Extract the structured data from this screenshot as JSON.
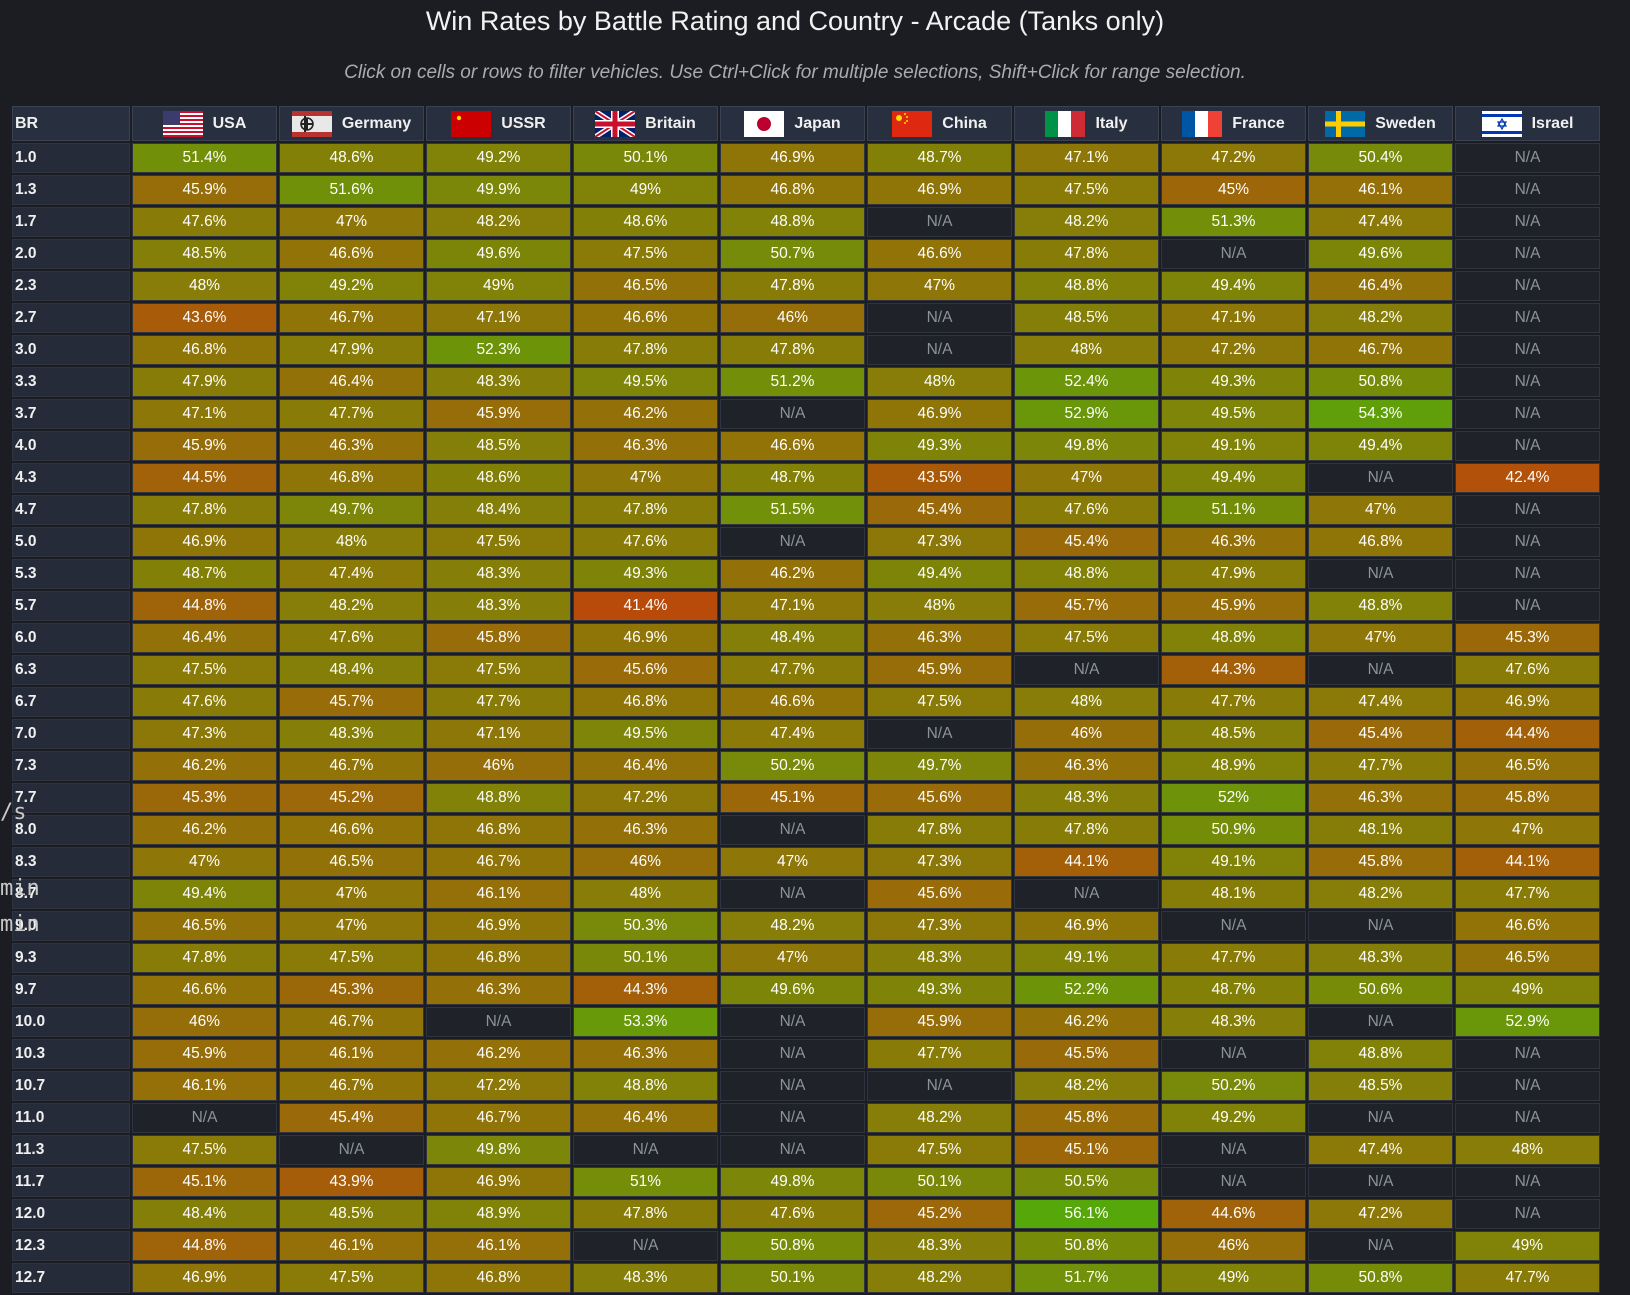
{
  "title": "Win Rates by Battle Rating and Country - Arcade (Tanks only)",
  "subtitle": "Click on cells or rows to filter vehicles. Use Ctrl+Click for multiple selections, Shift+Click for range selection.",
  "table": {
    "br_header": "BR",
    "countries": [
      {
        "name": "USA",
        "flag": "usa-flag-icon"
      },
      {
        "name": "Germany",
        "flag": "germany-flag-icon"
      },
      {
        "name": "USSR",
        "flag": "ussr-flag-icon"
      },
      {
        "name": "Britain",
        "flag": "britain-flag-icon"
      },
      {
        "name": "Japan",
        "flag": "japan-flag-icon"
      },
      {
        "name": "China",
        "flag": "china-flag-icon"
      },
      {
        "name": "Italy",
        "flag": "italy-flag-icon"
      },
      {
        "name": "France",
        "flag": "france-flag-icon"
      },
      {
        "name": "Sweden",
        "flag": "sweden-flag-icon"
      },
      {
        "name": "Israel",
        "flag": "israel-flag-icon"
      }
    ],
    "rows": [
      {
        "br": "1.0",
        "values": [
          "51.4%",
          "48.6%",
          "49.2%",
          "50.1%",
          "46.9%",
          "48.7%",
          "47.1%",
          "47.2%",
          "50.4%",
          "N/A"
        ]
      },
      {
        "br": "1.3",
        "values": [
          "45.9%",
          "51.6%",
          "49.9%",
          "49%",
          "46.8%",
          "46.9%",
          "47.5%",
          "45%",
          "46.1%",
          "N/A"
        ]
      },
      {
        "br": "1.7",
        "values": [
          "47.6%",
          "47%",
          "48.2%",
          "48.6%",
          "48.8%",
          "N/A",
          "48.2%",
          "51.3%",
          "47.4%",
          "N/A"
        ]
      },
      {
        "br": "2.0",
        "values": [
          "48.5%",
          "46.6%",
          "49.6%",
          "47.5%",
          "50.7%",
          "46.6%",
          "47.8%",
          "N/A",
          "49.6%",
          "N/A"
        ]
      },
      {
        "br": "2.3",
        "values": [
          "48%",
          "49.2%",
          "49%",
          "46.5%",
          "47.8%",
          "47%",
          "48.8%",
          "49.4%",
          "46.4%",
          "N/A"
        ]
      },
      {
        "br": "2.7",
        "values": [
          "43.6%",
          "46.7%",
          "47.1%",
          "46.6%",
          "46%",
          "N/A",
          "48.5%",
          "47.1%",
          "48.2%",
          "N/A"
        ]
      },
      {
        "br": "3.0",
        "values": [
          "46.8%",
          "47.9%",
          "52.3%",
          "47.8%",
          "47.8%",
          "N/A",
          "48%",
          "47.2%",
          "46.7%",
          "N/A"
        ]
      },
      {
        "br": "3.3",
        "values": [
          "47.9%",
          "46.4%",
          "48.3%",
          "49.5%",
          "51.2%",
          "48%",
          "52.4%",
          "49.3%",
          "50.8%",
          "N/A"
        ]
      },
      {
        "br": "3.7",
        "values": [
          "47.1%",
          "47.7%",
          "45.9%",
          "46.2%",
          "N/A",
          "46.9%",
          "52.9%",
          "49.5%",
          "54.3%",
          "N/A"
        ]
      },
      {
        "br": "4.0",
        "values": [
          "45.9%",
          "46.3%",
          "48.5%",
          "46.3%",
          "46.6%",
          "49.3%",
          "49.8%",
          "49.1%",
          "49.4%",
          "N/A"
        ]
      },
      {
        "br": "4.3",
        "values": [
          "44.5%",
          "46.8%",
          "48.6%",
          "47%",
          "48.7%",
          "43.5%",
          "47%",
          "49.4%",
          "N/A",
          "42.4%"
        ]
      },
      {
        "br": "4.7",
        "values": [
          "47.8%",
          "49.7%",
          "48.4%",
          "47.8%",
          "51.5%",
          "45.4%",
          "47.6%",
          "51.1%",
          "47%",
          "N/A"
        ]
      },
      {
        "br": "5.0",
        "values": [
          "46.9%",
          "48%",
          "47.5%",
          "47.6%",
          "N/A",
          "47.3%",
          "45.4%",
          "46.3%",
          "46.8%",
          "N/A"
        ]
      },
      {
        "br": "5.3",
        "values": [
          "48.7%",
          "47.4%",
          "48.3%",
          "49.3%",
          "46.2%",
          "49.4%",
          "48.8%",
          "47.9%",
          "N/A",
          "N/A"
        ]
      },
      {
        "br": "5.7",
        "values": [
          "44.8%",
          "48.2%",
          "48.3%",
          "41.4%",
          "47.1%",
          "48%",
          "45.7%",
          "45.9%",
          "48.8%",
          "N/A"
        ]
      },
      {
        "br": "6.0",
        "values": [
          "46.4%",
          "47.6%",
          "45.8%",
          "46.9%",
          "48.4%",
          "46.3%",
          "47.5%",
          "48.8%",
          "47%",
          "45.3%"
        ]
      },
      {
        "br": "6.3",
        "values": [
          "47.5%",
          "48.4%",
          "47.5%",
          "45.6%",
          "47.7%",
          "45.9%",
          "N/A",
          "44.3%",
          "N/A",
          "47.6%"
        ]
      },
      {
        "br": "6.7",
        "values": [
          "47.6%",
          "45.7%",
          "47.7%",
          "46.8%",
          "46.6%",
          "47.5%",
          "48%",
          "47.7%",
          "47.4%",
          "46.9%"
        ]
      },
      {
        "br": "7.0",
        "values": [
          "47.3%",
          "48.3%",
          "47.1%",
          "49.5%",
          "47.4%",
          "N/A",
          "46%",
          "48.5%",
          "45.4%",
          "44.4%"
        ]
      },
      {
        "br": "7.3",
        "values": [
          "46.2%",
          "46.7%",
          "46%",
          "46.4%",
          "50.2%",
          "49.7%",
          "46.3%",
          "48.9%",
          "47.7%",
          "46.5%"
        ]
      },
      {
        "br": "7.7",
        "values": [
          "45.3%",
          "45.2%",
          "48.8%",
          "47.2%",
          "45.1%",
          "45.6%",
          "48.3%",
          "52%",
          "46.3%",
          "45.8%"
        ]
      },
      {
        "br": "8.0",
        "values": [
          "46.2%",
          "46.6%",
          "46.8%",
          "46.3%",
          "N/A",
          "47.8%",
          "47.8%",
          "50.9%",
          "48.1%",
          "47%"
        ]
      },
      {
        "br": "8.3",
        "values": [
          "47%",
          "46.5%",
          "46.7%",
          "46%",
          "47%",
          "47.3%",
          "44.1%",
          "49.1%",
          "45.8%",
          "44.1%"
        ]
      },
      {
        "br": "8.7",
        "values": [
          "49.4%",
          "47%",
          "46.1%",
          "48%",
          "N/A",
          "45.6%",
          "N/A",
          "48.1%",
          "48.2%",
          "47.7%"
        ]
      },
      {
        "br": "9.0",
        "values": [
          "46.5%",
          "47%",
          "46.9%",
          "50.3%",
          "48.2%",
          "47.3%",
          "46.9%",
          "N/A",
          "N/A",
          "46.6%"
        ]
      },
      {
        "br": "9.3",
        "values": [
          "47.8%",
          "47.5%",
          "46.8%",
          "50.1%",
          "47%",
          "48.3%",
          "49.1%",
          "47.7%",
          "48.3%",
          "46.5%"
        ]
      },
      {
        "br": "9.7",
        "values": [
          "46.6%",
          "45.3%",
          "46.3%",
          "44.3%",
          "49.6%",
          "49.3%",
          "52.2%",
          "48.7%",
          "50.6%",
          "49%"
        ]
      },
      {
        "br": "10.0",
        "values": [
          "46%",
          "46.7%",
          "N/A",
          "53.3%",
          "N/A",
          "45.9%",
          "46.2%",
          "48.3%",
          "N/A",
          "52.9%"
        ]
      },
      {
        "br": "10.3",
        "values": [
          "45.9%",
          "46.1%",
          "46.2%",
          "46.3%",
          "N/A",
          "47.7%",
          "45.5%",
          "N/A",
          "48.8%",
          "N/A"
        ]
      },
      {
        "br": "10.7",
        "values": [
          "46.1%",
          "46.7%",
          "47.2%",
          "48.8%",
          "N/A",
          "N/A",
          "48.2%",
          "50.2%",
          "48.5%",
          "N/A"
        ]
      },
      {
        "br": "11.0",
        "values": [
          "N/A",
          "45.4%",
          "46.7%",
          "46.4%",
          "N/A",
          "48.2%",
          "45.8%",
          "49.2%",
          "N/A",
          "N/A"
        ]
      },
      {
        "br": "11.3",
        "values": [
          "47.5%",
          "N/A",
          "49.8%",
          "N/A",
          "N/A",
          "47.5%",
          "45.1%",
          "N/A",
          "47.4%",
          "48%"
        ]
      },
      {
        "br": "11.7",
        "values": [
          "45.1%",
          "43.9%",
          "46.9%",
          "51%",
          "49.8%",
          "50.1%",
          "50.5%",
          "N/A",
          "N/A",
          "N/A"
        ]
      },
      {
        "br": "12.0",
        "values": [
          "48.4%",
          "48.5%",
          "48.9%",
          "47.8%",
          "47.6%",
          "45.2%",
          "56.1%",
          "44.6%",
          "47.2%",
          "N/A"
        ]
      },
      {
        "br": "12.3",
        "values": [
          "44.8%",
          "46.1%",
          "46.1%",
          "N/A",
          "50.8%",
          "48.3%",
          "50.8%",
          "46%",
          "N/A",
          "49%"
        ]
      },
      {
        "br": "12.7",
        "values": [
          "46.9%",
          "47.5%",
          "46.8%",
          "48.3%",
          "50.1%",
          "48.2%",
          "51.7%",
          "49%",
          "50.8%",
          "47.7%"
        ]
      }
    ]
  },
  "overlay_text": [
    "/s",
    "min",
    "min"
  ],
  "colors": {
    "na": "#1f2229",
    "low": "#b84a0a",
    "mid": "#8a7a08",
    "high": "#56a80a"
  }
}
